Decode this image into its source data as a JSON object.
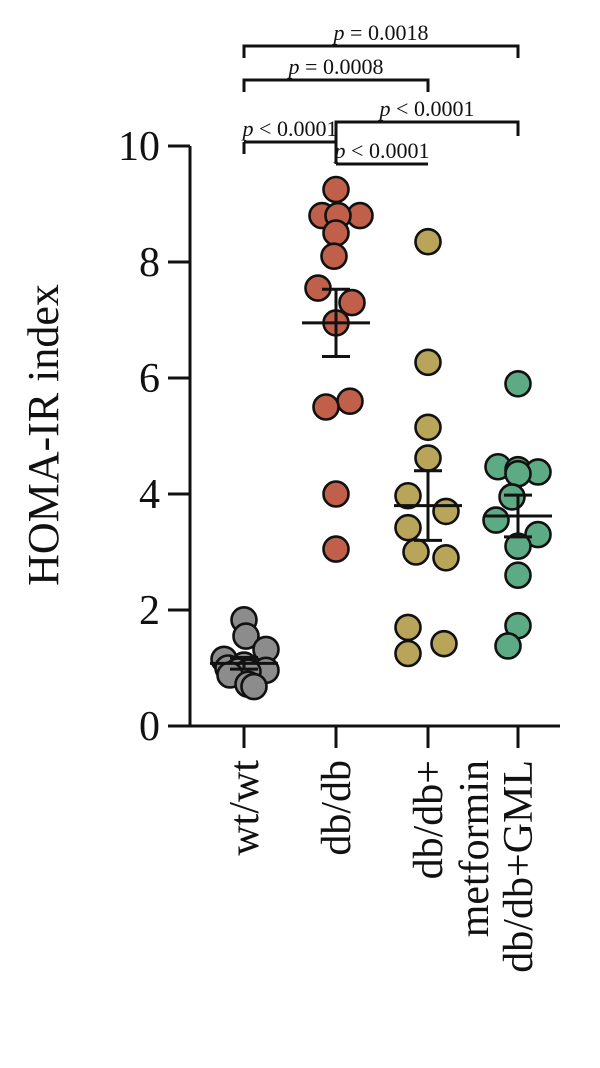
{
  "chart_data": {
    "type": "scatter",
    "ylabel": "HOMA-IR index",
    "ylim": [
      0,
      10
    ],
    "yticks": [
      0,
      2,
      4,
      6,
      8,
      10
    ],
    "categories": [
      "wt/wt",
      "db/db",
      "db/db+\nmetformin",
      "db/db+GML"
    ],
    "series": [
      {
        "color": "#8c8c8c",
        "values": [
          1.83,
          1.55,
          1.32,
          1.15,
          1.05,
          1.0,
          0.96,
          0.95,
          0.93,
          0.88,
          0.72,
          0.68
        ],
        "mean": 1.08,
        "sem": 0.1
      },
      {
        "color": "#c0604a",
        "values": [
          9.25,
          8.8,
          8.8,
          8.8,
          8.5,
          8.1,
          7.55,
          7.3,
          6.95,
          5.6,
          5.5,
          4.0,
          3.05
        ],
        "mean": 6.95,
        "sem": 0.58
      },
      {
        "color": "#b8a55a",
        "values": [
          8.35,
          6.27,
          5.15,
          4.62,
          3.97,
          3.7,
          3.42,
          3.0,
          2.9,
          1.7,
          1.42,
          1.25
        ],
        "mean": 3.8,
        "sem": 0.6
      },
      {
        "color": "#5cab84",
        "values": [
          5.9,
          4.47,
          4.42,
          4.38,
          4.35,
          3.95,
          3.55,
          3.3,
          3.1,
          2.6,
          1.73,
          1.38
        ],
        "mean": 3.62,
        "sem": 0.36
      }
    ],
    "comparisons": [
      {
        "from": 0,
        "to": 3,
        "label_p": "p",
        "label_rest": " = 0.0018"
      },
      {
        "from": 0,
        "to": 2,
        "label_p": "p",
        "label_rest": " = 0.0008"
      },
      {
        "from": 1,
        "to": 3,
        "label_p": "p",
        "label_rest": " < 0.0001"
      },
      {
        "from": 0,
        "to": 1,
        "label_p": "p",
        "label_rest": " < 0.0001"
      },
      {
        "from": 1,
        "to": 2,
        "label_p": "p",
        "label_rest": " < 0.0001"
      }
    ]
  }
}
